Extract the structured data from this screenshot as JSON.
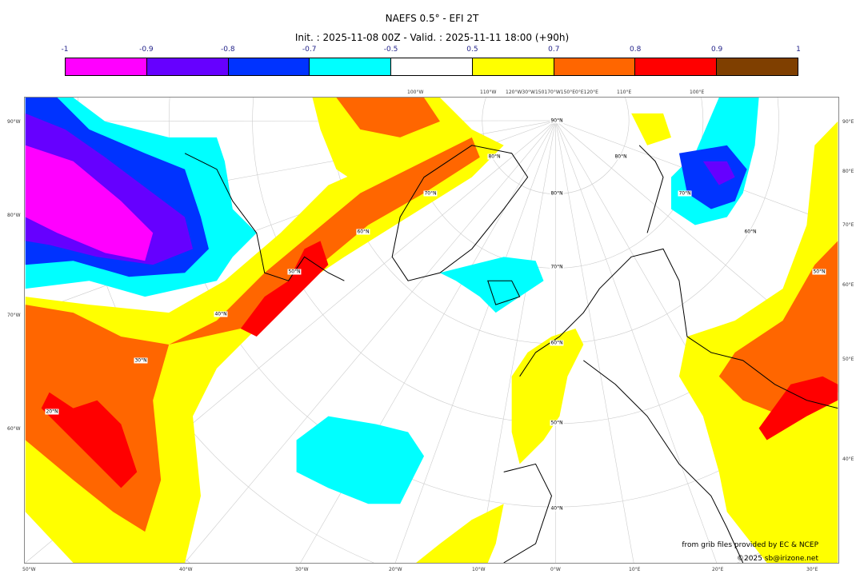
{
  "header": {
    "title": "NAEFS 0.5° - EFI 2T",
    "subtitle": "Init. : 2025-11-08 00Z - Valid. : 2025-11-11 18:00 (+90h)"
  },
  "colorbar": {
    "ticks": [
      "-1",
      "-0.9",
      "-0.8",
      "-0.7",
      "-0.5",
      "0.5",
      "0.7",
      "0.8",
      "0.9",
      "1"
    ],
    "colors": [
      "#ff00ff",
      "#6600ff",
      "#0033ff",
      "#00ffff",
      "#ffffff",
      "#ffff00",
      "#ff6600",
      "#ff0000",
      "#7f3f00"
    ]
  },
  "map": {
    "top_labels": [
      "100°W",
      "110°W",
      "120°W30°W150170°W150°E0°E120°E",
      "110°E",
      "100°E"
    ],
    "left_labels": [
      "90°W",
      "80°W",
      "70°W",
      "60°W"
    ],
    "right_labels": [
      "90°E",
      "80°E",
      "70°E",
      "60°E",
      "50°E",
      "40°E"
    ],
    "bottom_labels": [
      "50°W",
      "40°W",
      "30°W",
      "20°W",
      "10°W",
      "0°W",
      "10°E",
      "20°E",
      "30°E"
    ],
    "lat_labels": [
      "90°N",
      "80°N",
      "70°N",
      "60°N",
      "50°N",
      "40°N",
      "70°N",
      "60°N",
      "50°N",
      "40°N",
      "30°N",
      "20°N",
      "80°N",
      "70°N",
      "60°N",
      "50°N",
      "80°N"
    ]
  },
  "footer": {
    "credit": "from grib files provided by EC & NCEP",
    "copyright": "©2025 sb@irizone.net"
  }
}
